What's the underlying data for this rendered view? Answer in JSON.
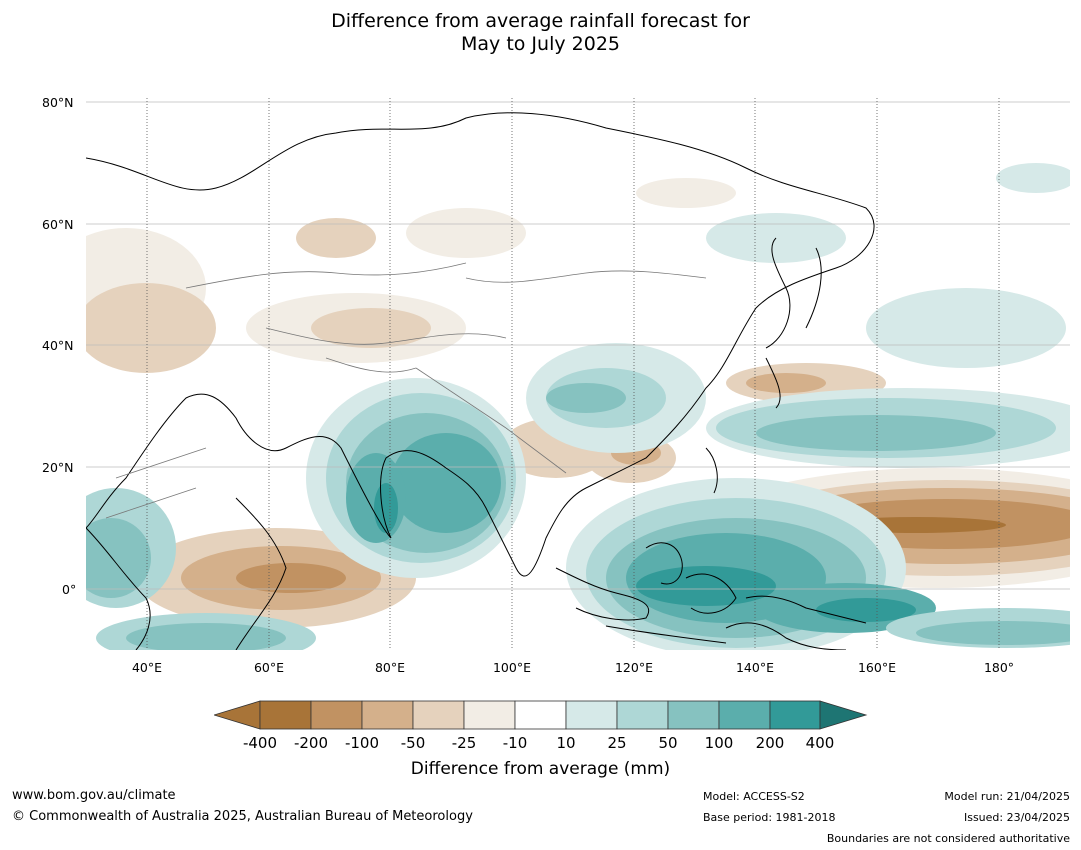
{
  "title_line1": "Difference from average rainfall forecast for",
  "title_line2": "May to July 2025",
  "lat_ticks": [
    "80°N",
    "60°N",
    "40°N",
    "20°N",
    "0°"
  ],
  "lon_ticks": [
    "40°E",
    "60°E",
    "80°E",
    "100°E",
    "120°E",
    "140°E",
    "160°E",
    "180°"
  ],
  "colorbar": {
    "labels": [
      "-400",
      "-200",
      "-100",
      "-50",
      "-25",
      "-10",
      "10",
      "25",
      "50",
      "100",
      "200",
      "400"
    ],
    "colors": [
      "#a87438",
      "#c19262",
      "#d4b08b",
      "#e5d2bd",
      "#f2ede5",
      "#ffffff",
      "#d6e9e8",
      "#aed7d6",
      "#86c2c0",
      "#5baeac",
      "#329a98",
      "#1e7573"
    ],
    "title": "Difference from average (mm)"
  },
  "footer": {
    "url": "www.bom.gov.au/climate",
    "copyright": "© Commonwealth of Australia 2025, Australian Bureau of Meteorology",
    "model": "Model: ACCESS-S2",
    "base_period": "Base period: 1981-2018",
    "model_run": "Model run: 21/04/2025",
    "issued": "Issued: 23/04/2025",
    "disclaimer": "Boundaries are not considered authoritative"
  }
}
